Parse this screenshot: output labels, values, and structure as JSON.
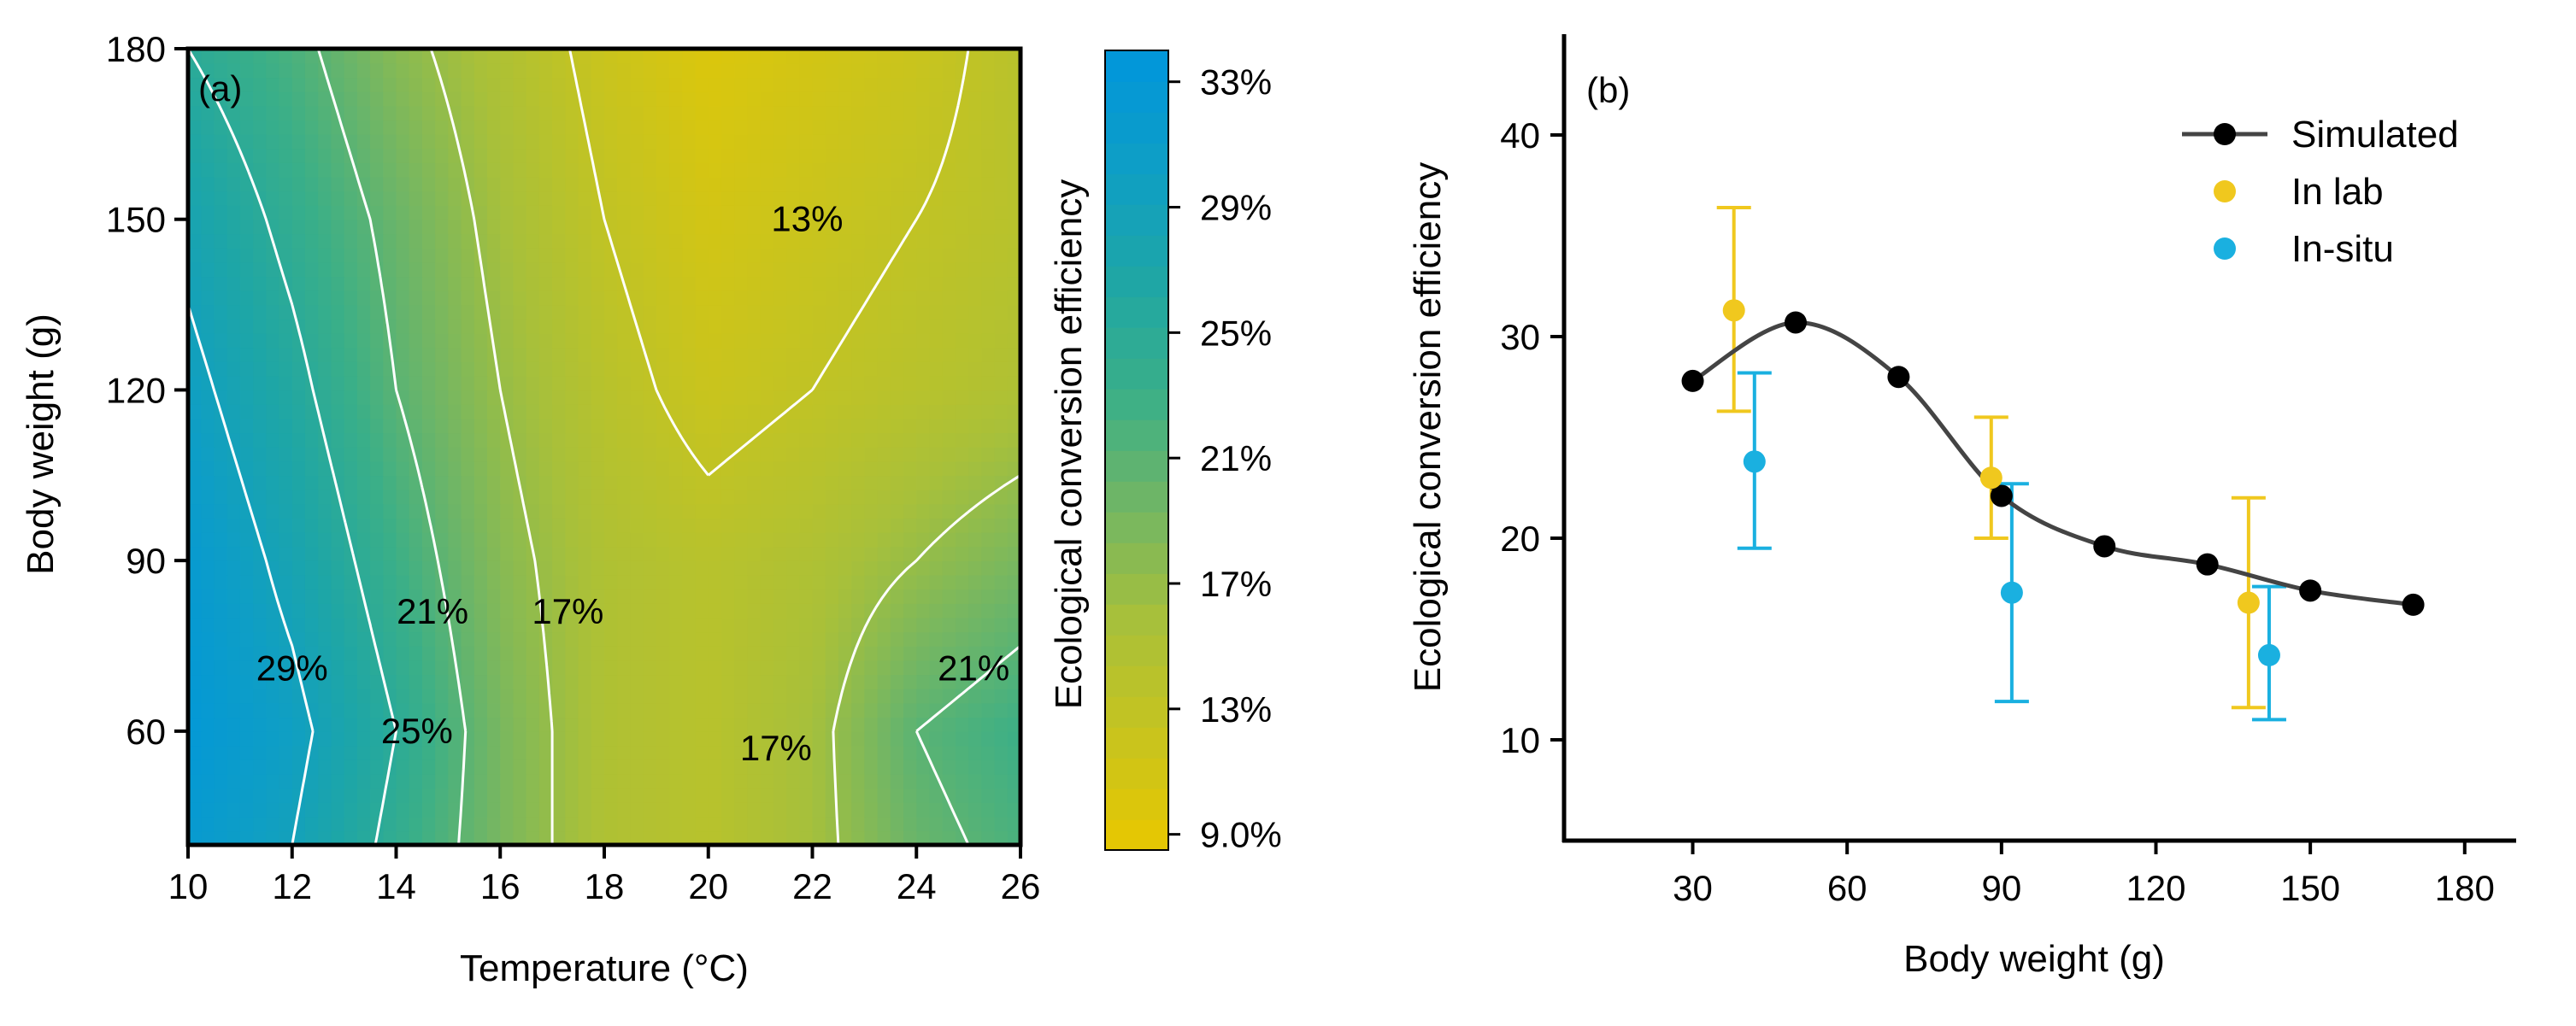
{
  "chart_data": [
    {
      "panel": "(a)",
      "type": "heatmap",
      "subtype": "filled-contour",
      "xlabel": "Temperature (°C)",
      "ylabel": "Body weight (g)",
      "xlim": [
        10,
        26
      ],
      "ylim": [
        40,
        180
      ],
      "xticks": [
        "10",
        "12",
        "14",
        "16",
        "18",
        "20",
        "22",
        "24",
        "26"
      ],
      "yticks": [
        "60",
        "90",
        "120",
        "150",
        "180"
      ],
      "x": [
        10,
        12,
        14,
        16,
        18,
        20,
        22,
        24,
        26
      ],
      "y": [
        40,
        60,
        90,
        120,
        150,
        180
      ],
      "z": [
        [
          0.32,
          0.29,
          0.24,
          0.19,
          0.15,
          0.14,
          0.16,
          0.2,
          0.22
        ],
        [
          0.33,
          0.3,
          0.25,
          0.19,
          0.15,
          0.14,
          0.16,
          0.21,
          0.23
        ],
        [
          0.32,
          0.28,
          0.23,
          0.18,
          0.15,
          0.14,
          0.15,
          0.17,
          0.19
        ],
        [
          0.3,
          0.26,
          0.21,
          0.17,
          0.14,
          0.12,
          0.13,
          0.14,
          0.15
        ],
        [
          0.28,
          0.24,
          0.2,
          0.16,
          0.13,
          0.11,
          0.12,
          0.13,
          0.14
        ],
        [
          0.25,
          0.22,
          0.18,
          0.15,
          0.12,
          0.1,
          0.11,
          0.12,
          0.14
        ]
      ],
      "contour_levels": [
        0.13,
        0.17,
        0.21,
        0.25,
        0.29
      ],
      "contour_labels": [
        {
          "text": "13%",
          "x": 21.9,
          "y": 150
        },
        {
          "text": "17%",
          "x": 17.3,
          "y": 81
        },
        {
          "text": "17%",
          "x": 21.3,
          "y": 57
        },
        {
          "text": "21%",
          "x": 14.7,
          "y": 81
        },
        {
          "text": "21%",
          "x": 25.1,
          "y": 71
        },
        {
          "text": "25%",
          "x": 14.4,
          "y": 60
        },
        {
          "text": "29%",
          "x": 12.0,
          "y": 71
        }
      ],
      "colorbar": {
        "label": "Ecological conversion efficiency",
        "range": [
          0.085,
          0.34
        ],
        "ticks": [
          {
            "value": 0.33,
            "label": "33%"
          },
          {
            "value": 0.29,
            "label": "29%"
          },
          {
            "value": 0.25,
            "label": "25%"
          },
          {
            "value": 0.21,
            "label": "21%"
          },
          {
            "value": 0.17,
            "label": "17%"
          },
          {
            "value": 0.13,
            "label": "13%"
          },
          {
            "value": 0.09,
            "label": "9.0%"
          }
        ],
        "colors": [
          "#e8c800",
          "#c8c41e",
          "#a8c03a",
          "#72b664",
          "#3aaf88",
          "#1ea6a6",
          "#0e9ec6",
          "#0096dc"
        ]
      }
    },
    {
      "panel": "(b)",
      "type": "line",
      "xlabel": "Body weight (g)",
      "ylabel": "Ecological conversion efficiency",
      "xlim": [
        5,
        190
      ],
      "ylim": [
        5,
        45
      ],
      "xticks": [
        30,
        60,
        90,
        120,
        150,
        180
      ],
      "yticks": [
        10,
        20,
        30,
        40
      ],
      "legend_position": "top-right",
      "series": [
        {
          "name": "Simulated",
          "color": "#000000",
          "line_color": "#444444",
          "x": [
            30,
            50,
            70,
            90,
            110,
            130,
            150,
            170
          ],
          "y": [
            27.8,
            30.7,
            28.0,
            22.1,
            19.6,
            18.7,
            17.4,
            16.7
          ]
        },
        {
          "name": "In lab",
          "color": "#f0c81e",
          "x": [
            38,
            88,
            138
          ],
          "y": [
            31.3,
            23.0,
            16.8
          ],
          "err_low": [
            26.3,
            20.0,
            11.6
          ],
          "err_high": [
            36.4,
            26.0,
            22.0
          ]
        },
        {
          "name": "In-situ",
          "color": "#1ab0e0",
          "x": [
            42,
            92,
            142
          ],
          "y": [
            23.8,
            17.3,
            14.2
          ],
          "err_low": [
            19.5,
            11.9,
            11.0
          ],
          "err_high": [
            28.2,
            22.7,
            17.6
          ]
        }
      ]
    }
  ]
}
